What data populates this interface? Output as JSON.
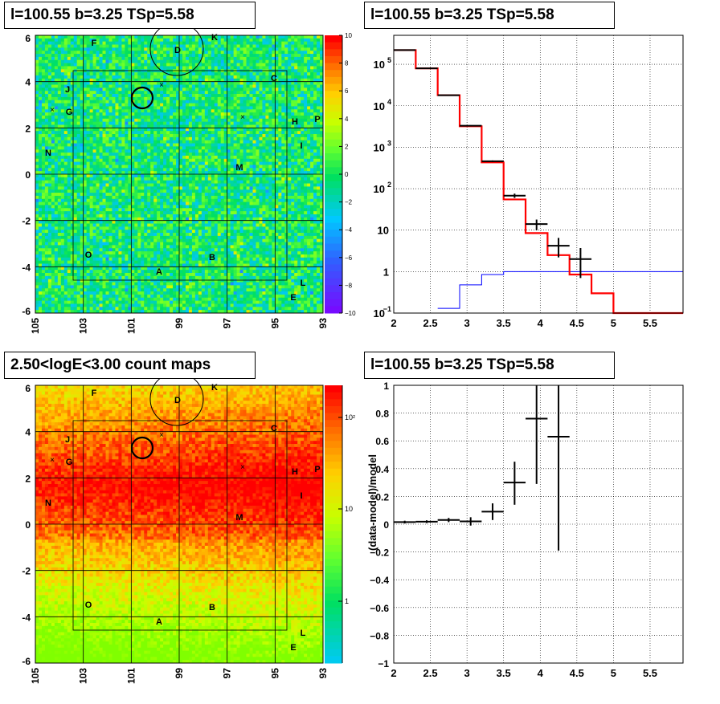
{
  "panels": {
    "top_left_title": "l=100.55 b=3.25 TSp=5.58",
    "top_right_title": "l=100.55 b=3.25 TSp=5.58",
    "bottom_left_title": "2.50<logE<3.00 count maps",
    "bottom_right_title": "l=100.55 b=3.25 TSp=5.58"
  },
  "colors": {
    "model_line": "#ff0000",
    "background_line": "#0000ff",
    "data_marker": "#000000"
  },
  "chart_data": [
    {
      "type": "heatmap",
      "name": "residual significance map",
      "x_ticks": [
        "105",
        "103",
        "101",
        "99",
        "97",
        "95",
        "93"
      ],
      "y_ticks": [
        "6",
        "4",
        "2",
        "0",
        "-2",
        "-4",
        "-6"
      ],
      "xlim": [
        105,
        93
      ],
      "ylim": [
        -6,
        6
      ],
      "colorbar_ticks": [
        "10",
        "8",
        "6",
        "4",
        "2",
        "0",
        "−2",
        "−4",
        "−6",
        "−8",
        "−10"
      ],
      "zlim": [
        -10,
        10
      ],
      "source_labels": [
        "F",
        "K",
        "D",
        "C",
        "J",
        "G",
        "H",
        "P",
        "I",
        "N",
        "M",
        "O",
        "B",
        "A",
        "L",
        "E"
      ]
    },
    {
      "type": "line",
      "name": "count spectrum",
      "x_ticks": [
        "2",
        "2.5",
        "3",
        "3.5",
        "4",
        "4.5",
        "5",
        "5.5"
      ],
      "y_ticks": [
        "10",
        "1"
      ],
      "y_tick_exps": [
        "5",
        "4",
        "3",
        "2",
        "−1"
      ],
      "y_tick_base": "10",
      "xlim": [
        2,
        5.95
      ],
      "ylim": [
        0.1,
        500000
      ],
      "log_y": true,
      "model_steps": {
        "edges": [
          2,
          2.3,
          2.6,
          2.9,
          3.2,
          3.5,
          3.8,
          4.1,
          4.4,
          4.7,
          5,
          5.95
        ],
        "values": [
          220000,
          80000,
          18000,
          3200,
          430,
          55,
          8.5,
          2.5,
          0.85,
          0.3,
          0.1
        ]
      },
      "background_steps": {
        "edges": [
          2.6,
          2.9,
          3.2,
          3.5,
          5.95
        ],
        "values": [
          0.13,
          0.48,
          0.85,
          1.0
        ]
      },
      "data_points": [
        {
          "x": 2.15,
          "y": 220000,
          "xerr": 0.15,
          "ylo": 215000,
          "yhi": 225000
        },
        {
          "x": 2.45,
          "y": 80000,
          "xerr": 0.15,
          "ylo": 78000,
          "yhi": 82000
        },
        {
          "x": 2.75,
          "y": 18000,
          "xerr": 0.15,
          "ylo": 17500,
          "yhi": 18500
        },
        {
          "x": 3.05,
          "y": 3300,
          "xerr": 0.15,
          "ylo": 3200,
          "yhi": 3400
        },
        {
          "x": 3.35,
          "y": 460,
          "xerr": 0.15,
          "ylo": 440,
          "yhi": 480
        },
        {
          "x": 3.65,
          "y": 68,
          "xerr": 0.15,
          "ylo": 60,
          "yhi": 76
        },
        {
          "x": 3.95,
          "y": 14,
          "xerr": 0.15,
          "ylo": 10,
          "yhi": 18
        },
        {
          "x": 4.25,
          "y": 4.2,
          "xerr": 0.15,
          "ylo": 2.2,
          "yhi": 6.5
        },
        {
          "x": 4.55,
          "y": 2.0,
          "xerr": 0.15,
          "ylo": 0.7,
          "yhi": 3.7
        }
      ]
    },
    {
      "type": "heatmap",
      "name": "count map",
      "x_ticks": [
        "105",
        "103",
        "101",
        "99",
        "97",
        "95",
        "93"
      ],
      "y_ticks": [
        "6",
        "4",
        "2",
        "0",
        "-2",
        "-4",
        "-6"
      ],
      "xlim": [
        105,
        93
      ],
      "ylim": [
        -6,
        6
      ],
      "colorbar_ticks": [
        "10²",
        "10",
        "1"
      ],
      "log_z": true,
      "source_labels": [
        "F",
        "K",
        "D",
        "C",
        "J",
        "G",
        "H",
        "P",
        "I",
        "N",
        "M",
        "O",
        "B",
        "A",
        "L",
        "E"
      ]
    },
    {
      "type": "scatter",
      "name": "residuals",
      "ylabel": "(data-model)/model",
      "x_ticks": [
        "2",
        "2.5",
        "3",
        "3.5",
        "4",
        "4.5",
        "5",
        "5.5"
      ],
      "y_ticks": [
        "1",
        "0.8",
        "0.6",
        "0.4",
        "0.2",
        "0",
        "−0.2",
        "−0.4",
        "−0.6",
        "−0.8",
        "−1"
      ],
      "xlim": [
        2,
        5.95
      ],
      "ylim": [
        -1,
        1
      ],
      "points": [
        {
          "x": 2.15,
          "y": 0.015,
          "xerr": 0.15,
          "ylo": 0.005,
          "yhi": 0.025
        },
        {
          "x": 2.45,
          "y": 0.018,
          "xerr": 0.15,
          "ylo": 0.008,
          "yhi": 0.028
        },
        {
          "x": 2.75,
          "y": 0.03,
          "xerr": 0.15,
          "ylo": 0.015,
          "yhi": 0.045
        },
        {
          "x": 3.05,
          "y": 0.02,
          "xerr": 0.15,
          "ylo": -0.01,
          "yhi": 0.05
        },
        {
          "x": 3.35,
          "y": 0.09,
          "xerr": 0.15,
          "ylo": 0.03,
          "yhi": 0.15
        },
        {
          "x": 3.65,
          "y": 0.3,
          "xerr": 0.15,
          "ylo": 0.14,
          "yhi": 0.45
        },
        {
          "x": 3.95,
          "y": 0.76,
          "xerr": 0.15,
          "ylo": 0.29,
          "yhi": 1.0
        },
        {
          "x": 4.25,
          "y": 0.63,
          "xerr": 0.15,
          "ylo": -0.19,
          "yhi": 1.0
        }
      ]
    }
  ]
}
